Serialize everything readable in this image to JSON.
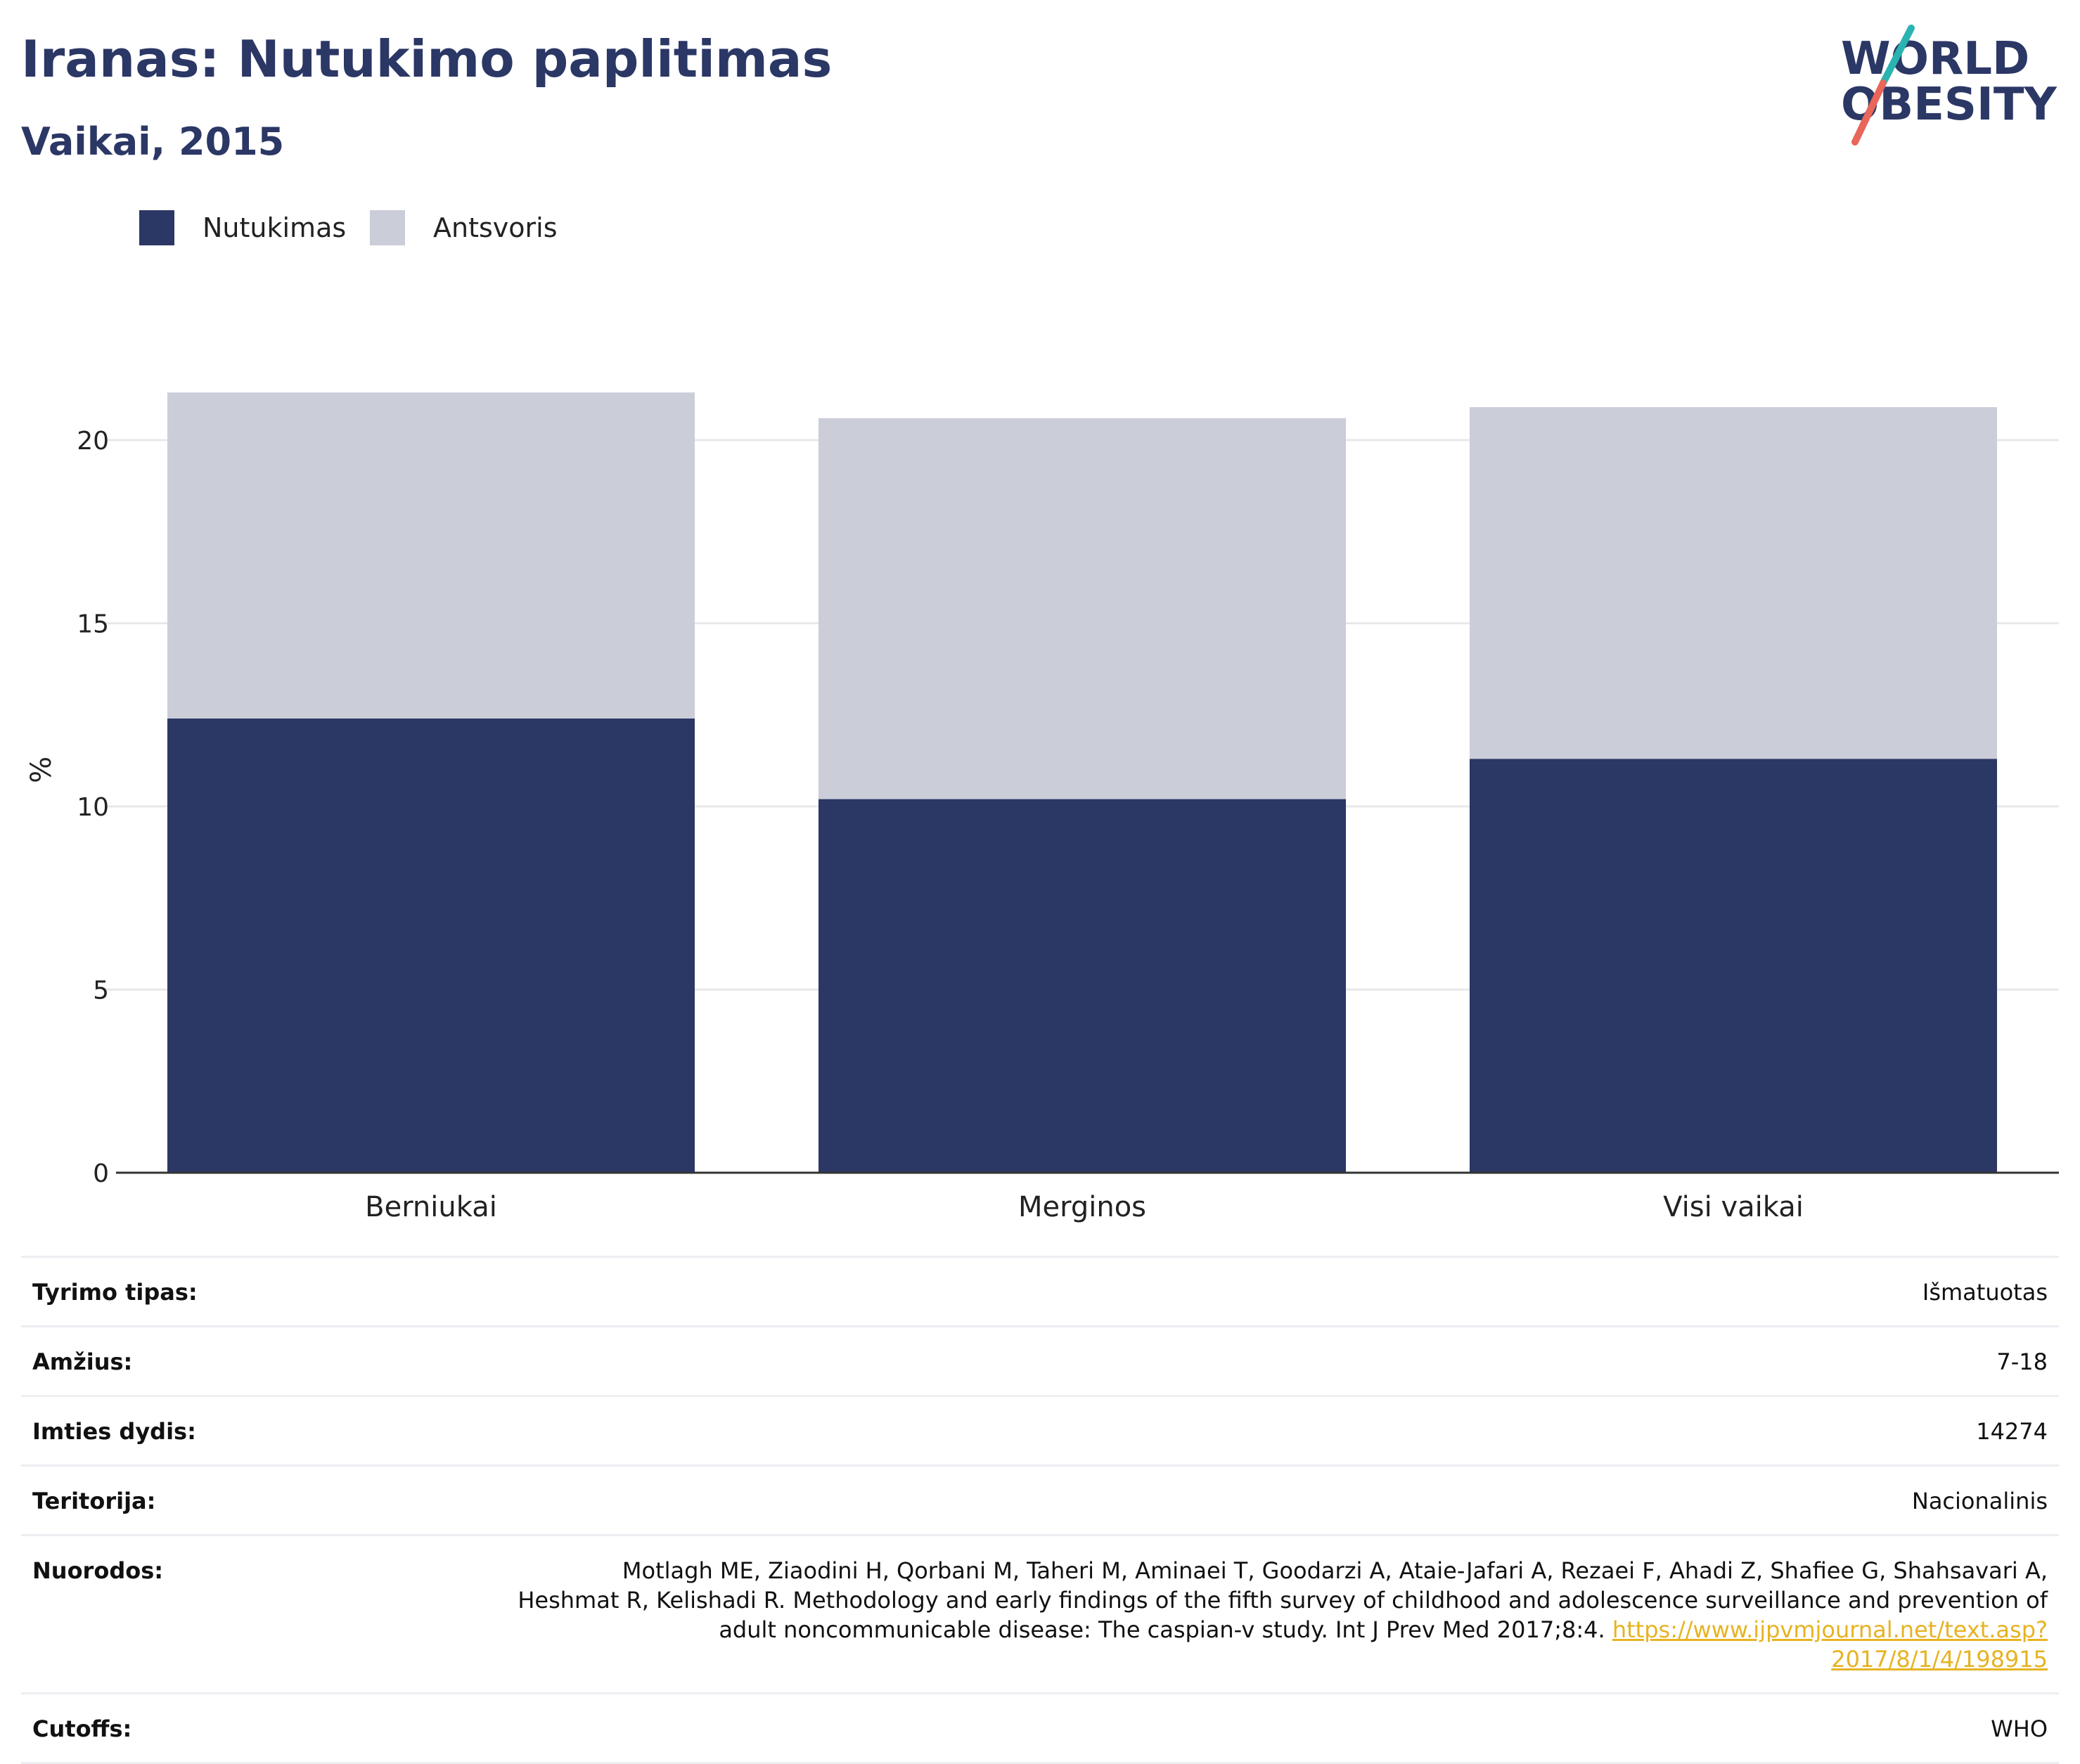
{
  "header": {
    "title": "Iranas: Nutukimo paplitimas",
    "subtitle": "Vaikai, 2015"
  },
  "logo": {
    "line1": "WORLD",
    "line2": "OBESITY",
    "colors": {
      "text": "#2b3765",
      "slash_top": "#2ab3b1",
      "slash_bottom": "#e8665a"
    }
  },
  "colors": {
    "obesity": "#2b3765",
    "overweight": "#cbcdd9",
    "gridline": "#e8e8e8",
    "axis": "#333333",
    "link": "#e6b322"
  },
  "chart_data": {
    "type": "bar",
    "stacked": true,
    "categories": [
      "Berniukai",
      "Merginos",
      "Visi vaikai"
    ],
    "series": [
      {
        "name": "Nutukimas",
        "values": [
          12.4,
          10.2,
          11.3
        ]
      },
      {
        "name": "Antsvoris",
        "values": [
          8.9,
          10.4,
          9.6
        ]
      }
    ],
    "ylabel": "%",
    "yticks": [
      "0",
      "5",
      "10",
      "15",
      "20"
    ],
    "ylim": [
      0,
      22.5
    ],
    "grid": true,
    "legend_position": "top-left"
  },
  "details": {
    "rows": [
      {
        "label": "Tyrimo tipas:",
        "value": "Išmatuotas"
      },
      {
        "label": "Amžius:",
        "value": "7-18"
      },
      {
        "label": "Imties dydis:",
        "value": "14274"
      },
      {
        "label": "Teritorija:",
        "value": "Nacionalinis"
      },
      {
        "label": "Nuorodos:",
        "value": "Motlagh ME, Ziaodini H, Qorbani M, Taheri M, Aminaei T, Goodarzi A, Ataie-Jafari A, Rezaei F, Ahadi Z, Shafiee G, Shahsavari A, Heshmat R, Kelishadi R. Methodology and early findings of the fifth survey of childhood and adolescence surveillance and prevention of adult noncommunicable disease: The caspian-v study. Int J Prev Med 2017;8:4.",
        "link": "https://www.ijpvmjournal.net/text.asp?2017/8/1/4/198915"
      },
      {
        "label": "Cutoffs:",
        "value": "WHO"
      }
    ]
  }
}
